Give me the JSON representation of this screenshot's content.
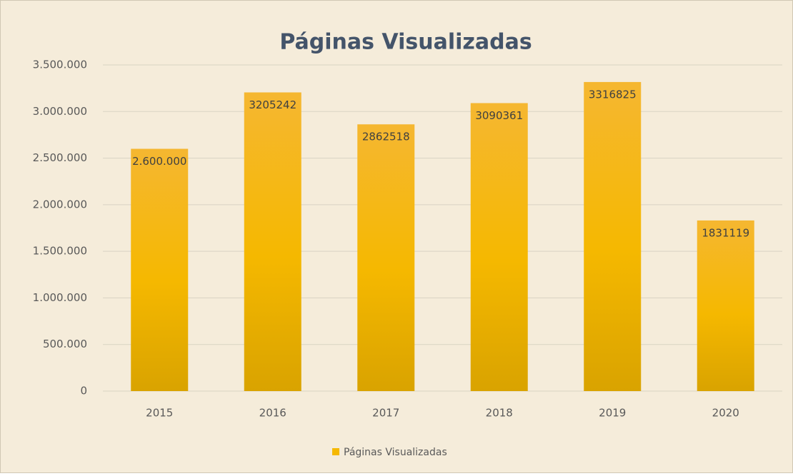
{
  "chart_data": {
    "type": "bar",
    "title": "Páginas Visualizadas",
    "categories": [
      "2015",
      "2016",
      "2017",
      "2018",
      "2019",
      "2020"
    ],
    "series": [
      {
        "name": "Páginas Visualizadas",
        "color": "#f5b800",
        "values": [
          2600000,
          3205242,
          2862518,
          3090361,
          3316825,
          1831119
        ],
        "value_labels": [
          "2.600.000",
          "3205242",
          "2862518",
          "3090361",
          "3316825",
          "1831119"
        ]
      }
    ],
    "ylim": [
      0,
      3500000
    ],
    "yticks": [
      0,
      {
        "value": 500000,
        "label": "500.000"
      },
      {
        "value": 1000000,
        "label": "1.000.000"
      },
      {
        "value": 1500000,
        "label": "1.500.000"
      },
      {
        "value": 2000000,
        "label": "2.000.000"
      },
      {
        "value": 2500000,
        "label": "2.500.000"
      },
      {
        "value": 3000000,
        "label": "3.000.000"
      },
      {
        "value": 3500000,
        "label": "3.500.000"
      }
    ],
    "grid": true,
    "legend": "bottom"
  }
}
